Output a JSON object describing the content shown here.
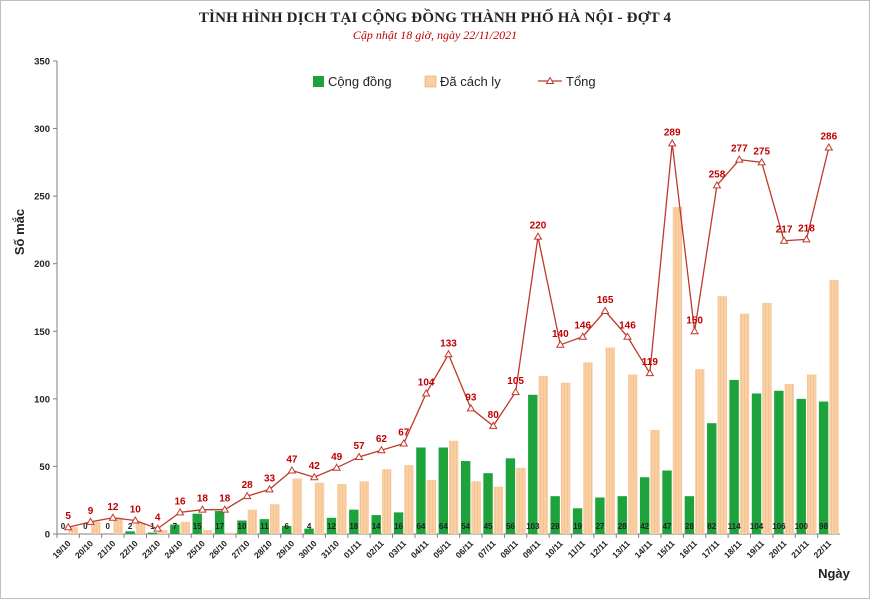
{
  "chart_data": {
    "type": "bar",
    "title": "TÌNH HÌNH DỊCH TẠI CỘNG ĐỒNG THÀNH PHỐ HÀ NỘI - ĐỢT 4",
    "subtitle": "Cập nhật 18 giờ, ngày 22/11/2021",
    "xlabel": "Ngày",
    "ylabel": "Số mắc",
    "ylim": [
      0,
      350
    ],
    "yticks": [
      0,
      50,
      100,
      150,
      200,
      250,
      300,
      350
    ],
    "grid": false,
    "legend": "top-center",
    "categories": [
      "19/10",
      "20/10",
      "21/10",
      "22/10",
      "23/10",
      "24/10",
      "25/10",
      "26/10",
      "27/10",
      "28/10",
      "29/10",
      "30/10",
      "31/10",
      "01/11",
      "02/11",
      "03/11",
      "04/11",
      "05/11",
      "06/11",
      "07/11",
      "08/11",
      "09/11",
      "10/11",
      "11/11",
      "12/11",
      "13/11",
      "14/11",
      "15/11",
      "16/11",
      "17/11",
      "18/11",
      "19/11",
      "20/11",
      "21/11",
      "22/11"
    ],
    "series": [
      {
        "name": "Cộng đồng",
        "type": "bar",
        "color": "#1ea33c",
        "values": [
          0,
          0,
          0,
          2,
          1,
          7,
          15,
          17,
          10,
          11,
          6,
          4,
          12,
          18,
          14,
          16,
          64,
          64,
          54,
          45,
          56,
          103,
          28,
          19,
          27,
          28,
          42,
          47,
          28,
          82,
          114,
          104,
          106,
          100,
          98
        ]
      },
      {
        "name": "Đã cách ly",
        "type": "bar",
        "color": "#f9cfa4",
        "values": [
          5,
          9,
          12,
          8,
          3,
          9,
          3,
          1,
          18,
          22,
          41,
          38,
          37,
          39,
          48,
          51,
          40,
          69,
          39,
          35,
          49,
          117,
          112,
          127,
          138,
          118,
          77,
          242,
          122,
          176,
          163,
          171,
          111,
          118,
          188
        ]
      },
      {
        "name": "Tổng",
        "type": "line",
        "color": "#c0392b",
        "values": [
          5,
          9,
          12,
          10,
          4,
          16,
          18,
          18,
          28,
          33,
          47,
          42,
          49,
          57,
          62,
          67,
          104,
          133,
          93,
          80,
          105,
          220,
          140,
          146,
          165,
          146,
          119,
          289,
          150,
          258,
          277,
          275,
          217,
          218,
          286
        ]
      }
    ]
  }
}
